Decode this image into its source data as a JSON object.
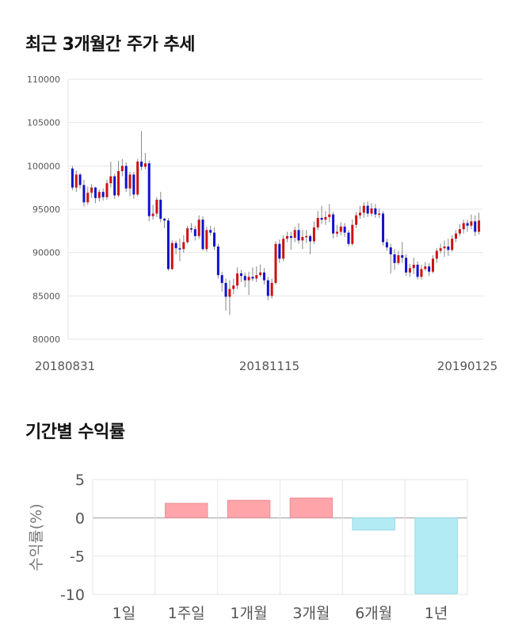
{
  "section1": {
    "title": "최근 3개월간 주가 추세"
  },
  "section2": {
    "title": "기간별 수익률"
  },
  "chart_data": [
    {
      "type": "candlestick",
      "ylim": [
        80000,
        110000
      ],
      "y_ticks": [
        "110000",
        "105000",
        "100000",
        "95000",
        "90000",
        "85000",
        "80000"
      ],
      "x_tick_labels": [
        "20180831",
        "20181115",
        "20190125"
      ],
      "grid": true,
      "colors": {
        "up": "#cc1111",
        "down": "#1111cc"
      },
      "candles": [
        [
          99700,
          97500,
          100000,
          97200
        ],
        [
          97500,
          99000,
          99500,
          97000
        ],
        [
          99000,
          97800,
          99200,
          97400
        ],
        [
          97800,
          95800,
          98400,
          95300
        ],
        [
          95800,
          96900,
          97600,
          95500
        ],
        [
          96900,
          97500,
          97900,
          96300
        ],
        [
          97500,
          96300,
          97600,
          95700
        ],
        [
          96300,
          97000,
          97300,
          95900
        ],
        [
          97000,
          96400,
          97400,
          96000
        ],
        [
          96400,
          98000,
          98400,
          96100
        ],
        [
          98000,
          98800,
          100500,
          97500
        ],
        [
          98800,
          96600,
          99100,
          96200
        ],
        [
          96600,
          99400,
          100600,
          96400
        ],
        [
          99400,
          100000,
          100800,
          98800
        ],
        [
          100000,
          97400,
          100400,
          97000
        ],
        [
          97400,
          99000,
          99300,
          96500
        ],
        [
          99000,
          96700,
          99300,
          96200
        ],
        [
          96700,
          100500,
          100800,
          96500
        ],
        [
          100500,
          99900,
          104000,
          99500
        ],
        [
          99900,
          100300,
          101500,
          99600
        ],
        [
          100300,
          94200,
          100600,
          93600
        ],
        [
          94200,
          94500,
          95500,
          93800
        ],
        [
          94500,
          96100,
          96400,
          94100
        ],
        [
          96100,
          93900,
          97000,
          93500
        ],
        [
          93900,
          93700,
          94000,
          92800
        ],
        [
          93700,
          88100,
          94000,
          87900
        ],
        [
          88100,
          91100,
          91400,
          88000
        ],
        [
          91100,
          90500,
          91400,
          89800
        ],
        [
          90500,
          90400,
          91600,
          89000
        ],
        [
          90400,
          91200,
          92000,
          90000
        ],
        [
          91200,
          92800,
          93100,
          91000
        ],
        [
          92800,
          92700,
          93400,
          92300
        ],
        [
          92700,
          91900,
          93100,
          91400
        ],
        [
          91900,
          93800,
          94300,
          91600
        ],
        [
          93800,
          90400,
          94200,
          90200
        ],
        [
          90400,
          92600,
          93000,
          90100
        ],
        [
          92600,
          92300,
          93100,
          92000
        ],
        [
          92300,
          90700,
          92900,
          90300
        ],
        [
          90700,
          87400,
          91000,
          87000
        ],
        [
          87400,
          86500,
          87800,
          85500
        ],
        [
          86500,
          84900,
          87000,
          83300
        ],
        [
          84900,
          85800,
          86800,
          82800
        ],
        [
          85800,
          86200,
          87000,
          85200
        ],
        [
          86200,
          87600,
          88300,
          85800
        ],
        [
          87600,
          87300,
          88000,
          86600
        ],
        [
          87300,
          86800,
          87700,
          86000
        ],
        [
          86800,
          87200,
          87800,
          85100
        ],
        [
          87200,
          87000,
          88300,
          86700
        ],
        [
          87000,
          87400,
          88400,
          86600
        ],
        [
          87400,
          87700,
          88600,
          87200
        ],
        [
          87700,
          86800,
          88200,
          86300
        ],
        [
          86800,
          85000,
          87200,
          84500
        ],
        [
          85000,
          86500,
          87000,
          84700
        ],
        [
          86500,
          91000,
          91300,
          86300
        ],
        [
          91000,
          89300,
          91500,
          88800
        ],
        [
          89300,
          91600,
          92000,
          89000
        ],
        [
          91600,
          91900,
          92400,
          91200
        ],
        [
          91900,
          91700,
          92400,
          90300
        ],
        [
          91700,
          92600,
          93000,
          91200
        ],
        [
          92600,
          91400,
          93400,
          91000
        ],
        [
          91400,
          91800,
          92600,
          90400
        ],
        [
          91800,
          91900,
          92600,
          91100
        ],
        [
          91900,
          91300,
          92100,
          89800
        ],
        [
          91300,
          92900,
          93600,
          91000
        ],
        [
          92900,
          94000,
          94800,
          92600
        ],
        [
          94000,
          93800,
          95400,
          93300
        ],
        [
          93800,
          94100,
          94800,
          93200
        ],
        [
          94100,
          94400,
          95600,
          93500
        ],
        [
          94400,
          92200,
          94700,
          91600
        ],
        [
          92200,
          92400,
          93200,
          91800
        ],
        [
          92400,
          93000,
          93500,
          92000
        ],
        [
          93000,
          92300,
          93400,
          91800
        ],
        [
          92300,
          91000,
          92600,
          90700
        ],
        [
          91000,
          93200,
          93800,
          90800
        ],
        [
          93200,
          94300,
          94700,
          92800
        ],
        [
          94300,
          94600,
          95400,
          93900
        ],
        [
          94600,
          95400,
          95800,
          94000
        ],
        [
          95400,
          94500,
          95900,
          94100
        ],
        [
          94500,
          95100,
          95700,
          94200
        ],
        [
          95100,
          94400,
          95600,
          94000
        ],
        [
          94400,
          94500,
          95100,
          94000
        ],
        [
          94500,
          91200,
          94800,
          90800
        ],
        [
          91200,
          90600,
          91600,
          90200
        ],
        [
          90600,
          89800,
          91000,
          87600
        ],
        [
          89800,
          88800,
          90400,
          88000
        ],
        [
          88800,
          89700,
          90200,
          88600
        ],
        [
          89700,
          89400,
          91200,
          88800
        ],
        [
          89400,
          87700,
          89800,
          87300
        ],
        [
          87700,
          88200,
          88700,
          87200
        ],
        [
          88200,
          88600,
          89400,
          87500
        ],
        [
          88600,
          87200,
          89000,
          86900
        ],
        [
          87200,
          88100,
          88600,
          86900
        ],
        [
          88100,
          88400,
          88900,
          87900
        ],
        [
          88400,
          87800,
          88800,
          87300
        ],
        [
          87800,
          89300,
          89700,
          87600
        ],
        [
          89300,
          90200,
          90500,
          88800
        ],
        [
          90200,
          90500,
          91000,
          89900
        ],
        [
          90500,
          90700,
          91400,
          89500
        ],
        [
          90700,
          90300,
          91600,
          89600
        ],
        [
          90300,
          91600,
          92000,
          90100
        ],
        [
          91600,
          92200,
          92600,
          91200
        ],
        [
          92200,
          92700,
          93300,
          91900
        ],
        [
          92700,
          93400,
          93800,
          92200
        ],
        [
          93400,
          93100,
          93800,
          92400
        ],
        [
          93100,
          93600,
          94400,
          92700
        ],
        [
          93600,
          92400,
          94300,
          91900
        ],
        [
          92400,
          93700,
          94600,
          92100
        ]
      ]
    },
    {
      "type": "bar",
      "ylabel": "수익률(%)",
      "ylim": [
        -10,
        5
      ],
      "y_ticks": [
        5,
        0,
        -5,
        -10
      ],
      "categories": [
        "1일",
        "1주일",
        "1개월",
        "3개월",
        "6개월",
        "1년"
      ],
      "values": [
        0.0,
        1.9,
        2.3,
        2.6,
        -1.6,
        -9.9
      ],
      "colors": {
        "positive": "#ffa4a8",
        "negative": "#b3ebf5"
      }
    }
  ]
}
